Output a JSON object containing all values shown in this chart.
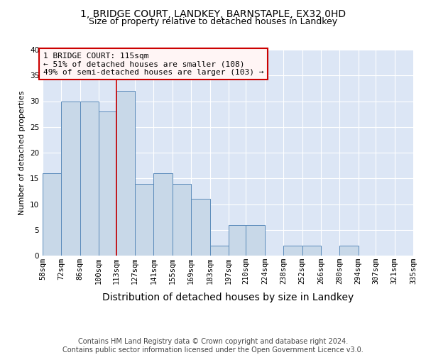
{
  "title1": "1, BRIDGE COURT, LANDKEY, BARNSTAPLE, EX32 0HD",
  "title2": "Size of property relative to detached houses in Landkey",
  "xlabel": "Distribution of detached houses by size in Landkey",
  "ylabel": "Number of detached properties",
  "bin_edges": [
    58,
    72,
    86,
    100,
    113,
    127,
    141,
    155,
    169,
    183,
    197,
    210,
    224,
    238,
    252,
    266,
    280,
    294,
    307,
    321,
    335
  ],
  "bin_labels": [
    "58sqm",
    "72sqm",
    "86sqm",
    "100sqm",
    "113sqm",
    "127sqm",
    "141sqm",
    "155sqm",
    "169sqm",
    "183sqm",
    "197sqm",
    "210sqm",
    "224sqm",
    "238sqm",
    "252sqm",
    "266sqm",
    "280sqm",
    "294sqm",
    "307sqm",
    "321sqm",
    "335sqm"
  ],
  "bar_heights": [
    16,
    30,
    30,
    28,
    32,
    14,
    16,
    14,
    11,
    2,
    6,
    6,
    0,
    2,
    2,
    0,
    2,
    0,
    0,
    0
  ],
  "bar_color": "#c8d8e8",
  "bar_edge_color": "#5a8aba",
  "property_line_x": 113,
  "annotation_title": "1 BRIDGE COURT: 115sqm",
  "annotation_line1": "← 51% of detached houses are smaller (108)",
  "annotation_line2": "49% of semi-detached houses are larger (103) →",
  "annotation_box_facecolor": "#fff5f5",
  "annotation_edge_color": "#cc0000",
  "vline_color": "#cc0000",
  "ylim": [
    0,
    40
  ],
  "yticks": [
    0,
    5,
    10,
    15,
    20,
    25,
    30,
    35,
    40
  ],
  "background_color": "#dce6f5",
  "grid_color": "#ffffff",
  "footer1": "Contains HM Land Registry data © Crown copyright and database right 2024.",
  "footer2": "Contains public sector information licensed under the Open Government Licence v3.0.",
  "title_fontsize": 10,
  "subtitle_fontsize": 9,
  "xlabel_fontsize": 10,
  "ylabel_fontsize": 8,
  "tick_fontsize": 7.5,
  "annotation_fontsize": 8,
  "footer_fontsize": 7
}
